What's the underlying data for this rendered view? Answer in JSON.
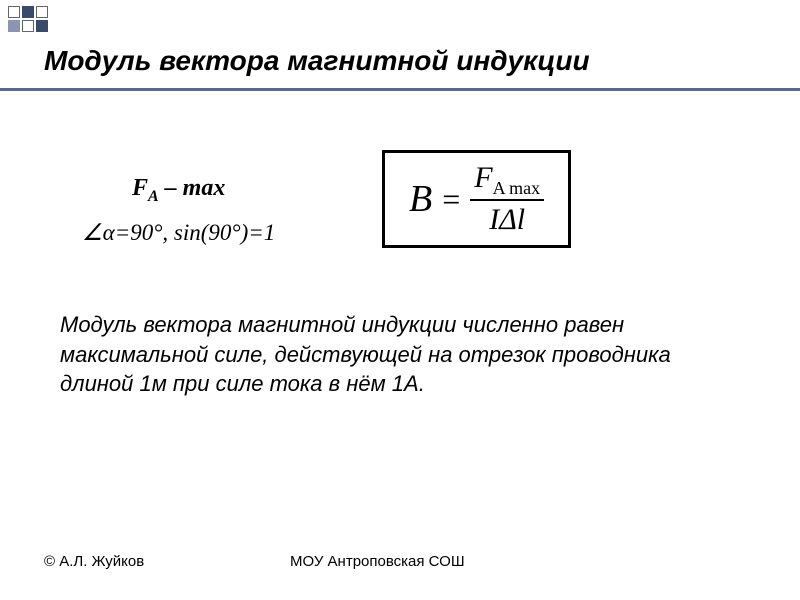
{
  "decor": {
    "squares": [
      {
        "fill": "#ffffff",
        "border": "#666"
      },
      {
        "fill": "#3a4a6b",
        "border": "#3a4a6b"
      },
      {
        "fill": "#ffffff",
        "border": "#666"
      },
      {
        "fill": "#8a96b0",
        "border": "#8a96b0"
      },
      {
        "fill": "#ffffff",
        "border": "#666"
      },
      {
        "fill": "#3a4a6b",
        "border": "#3a4a6b"
      }
    ]
  },
  "title": "Модуль вектора магнитной индукции",
  "condition": {
    "line1_F": "F",
    "line1_sub": "A",
    "line1_rest": " – max",
    "line2": "∠α=90°,  sin(90°)=1"
  },
  "formula": {
    "B": "B",
    "eq": "=",
    "num_F": "F",
    "num_sub": "A max",
    "den": "IΔl"
  },
  "definition": "Модуль вектора магнитной индукции численно равен максимальной силе, действующей на отрезок проводника длиной 1м при силе тока в нём 1А.",
  "footer": {
    "copyright": "© А.Л.  Жуйков",
    "school": "МОУ Антроповская СОШ"
  },
  "styling": {
    "underline_color": "#5b6b8f",
    "bg": "#ffffff",
    "text_color": "#000000",
    "title_fontsize": 28,
    "cond_fontsize": 24,
    "formula_fontsize": 38,
    "def_fontsize": 22,
    "footer_fontsize": 15
  }
}
